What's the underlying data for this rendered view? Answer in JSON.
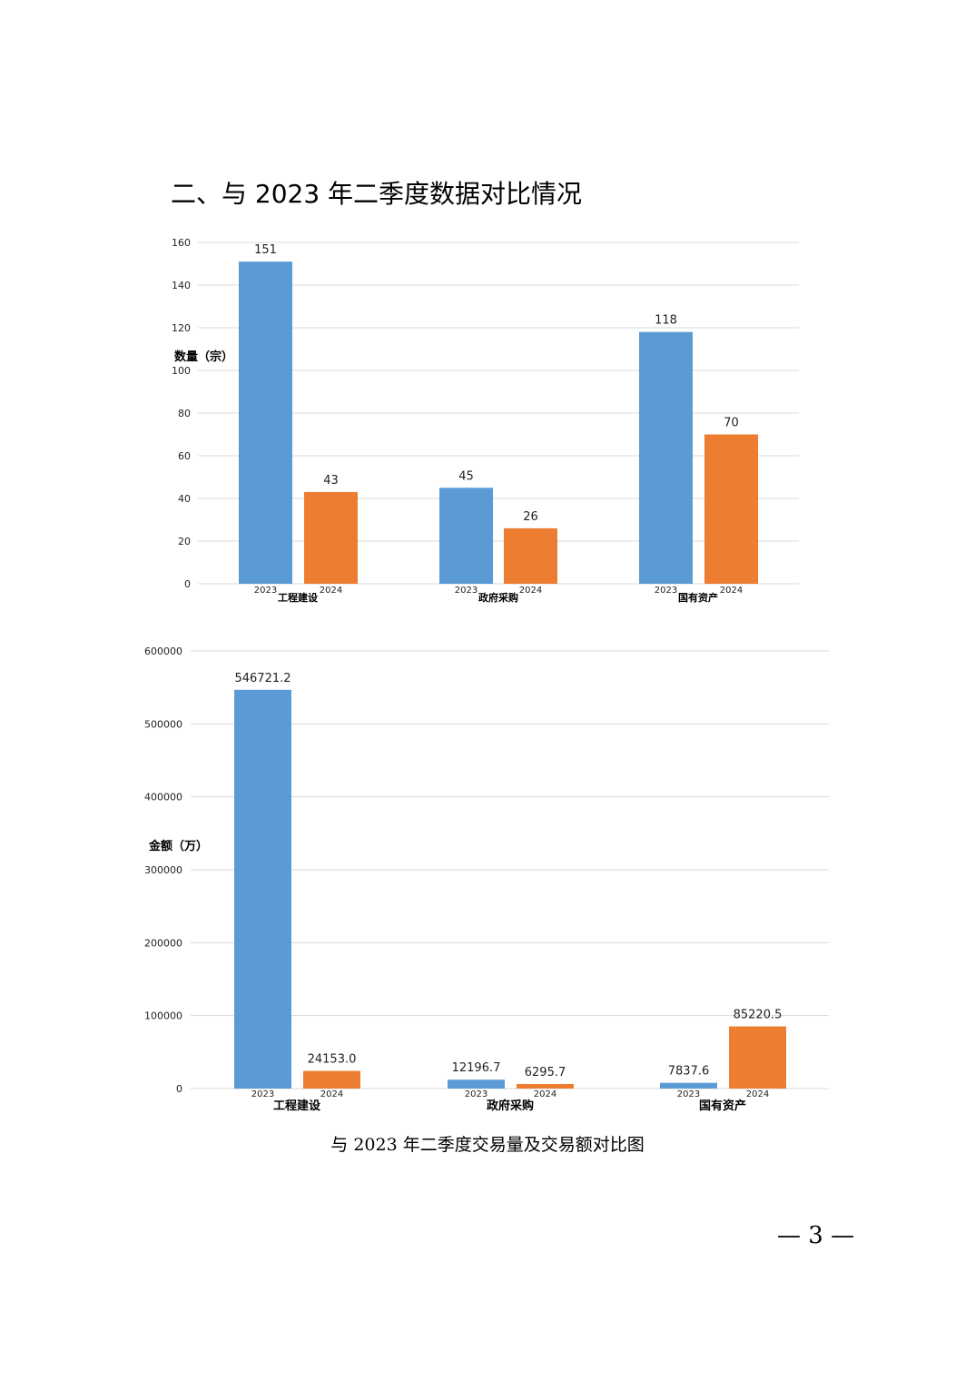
{
  "heading": "二、与 2023 年二季度数据对比情况",
  "caption": "与 2023 年二季度交易量及交易额对比图",
  "page_number": "— 3 —",
  "colors": {
    "y2023": "#5b9bd5",
    "y2024": "#ed7d31",
    "grid": "#d9d9d9"
  },
  "chart_data": [
    {
      "type": "bar",
      "ylabel": "数量（宗）",
      "ylim": [
        0,
        160
      ],
      "yticks": [
        0,
        20,
        40,
        60,
        80,
        100,
        120,
        140,
        160
      ],
      "ytick_labels": [
        "0",
        "20",
        "40",
        "60",
        "80",
        "100",
        "120",
        "140",
        "160"
      ],
      "categories": [
        "工程建设",
        "政府采购",
        "国有资产"
      ],
      "series": [
        {
          "name": "2023",
          "values": [
            151,
            45,
            118
          ],
          "labels": [
            "151",
            "45",
            "118"
          ]
        },
        {
          "name": "2024",
          "values": [
            43,
            26,
            70
          ],
          "labels": [
            "43",
            "26",
            "70"
          ]
        }
      ]
    },
    {
      "type": "bar",
      "ylabel": "金额（万）",
      "ylim": [
        0,
        600000
      ],
      "yticks": [
        0,
        100000,
        200000,
        300000,
        400000,
        500000,
        600000
      ],
      "ytick_labels": [
        "0",
        "100000",
        "200000",
        "300000",
        "400000",
        "500000",
        "600000"
      ],
      "categories": [
        "工程建设",
        "政府采购",
        "国有资产"
      ],
      "series": [
        {
          "name": "2023",
          "values": [
            546721.2,
            12196.7,
            7837.6
          ],
          "labels": [
            "546721.2",
            "12196.7",
            "7837.6"
          ]
        },
        {
          "name": "2024",
          "values": [
            24153.0,
            6295.7,
            85220.5
          ],
          "labels": [
            "24153.0",
            "6295.7",
            "85220.5"
          ]
        }
      ]
    }
  ]
}
